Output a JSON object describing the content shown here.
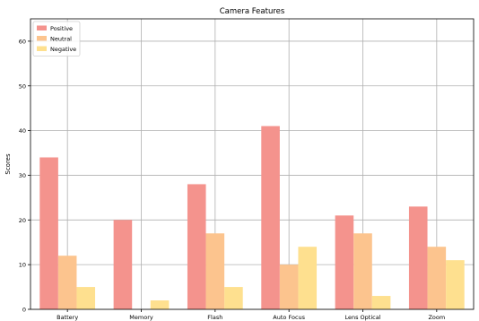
{
  "chart_data": {
    "type": "bar",
    "title": "Camera Features",
    "xlabel": "",
    "ylabel": "Scores",
    "categories": [
      "Battery",
      "Memory",
      "Flash",
      "Auto Focus",
      "Lens Optical",
      "Zoom"
    ],
    "series": [
      {
        "name": "Positive",
        "values": [
          34,
          20,
          28,
          41,
          21,
          23
        ],
        "color": "#f4938d"
      },
      {
        "name": "Neutral",
        "values": [
          12,
          0,
          17,
          10,
          17,
          14
        ],
        "color": "#fcc48e"
      },
      {
        "name": "Negative",
        "values": [
          5,
          2,
          5,
          14,
          3,
          11
        ],
        "color": "#fee08f"
      }
    ],
    "ylim": [
      0,
      65
    ],
    "yticks": [
      0,
      10,
      20,
      30,
      40,
      50,
      60
    ],
    "grid": true,
    "legend": "top-left"
  }
}
